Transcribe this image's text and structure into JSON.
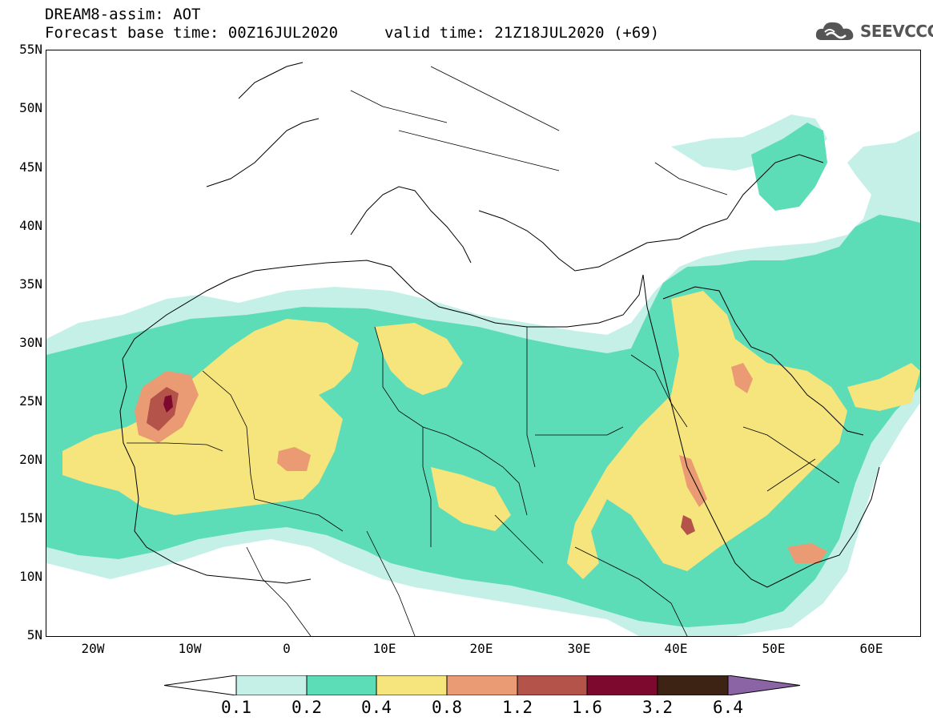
{
  "title": {
    "line1": "DREAM8-assim: AOT",
    "line2": "Forecast base time: 00Z16JUL2020",
    "line3": "valid time: 21Z18JUL2020 (+69)"
  },
  "logo": {
    "text": "SEEVCCC",
    "icon": "cloud-icon"
  },
  "axes": {
    "lat_labels": [
      "55N",
      "50N",
      "45N",
      "40N",
      "35N",
      "30N",
      "25N",
      "20N",
      "15N",
      "10N",
      "5N"
    ],
    "lon_labels": [
      "20W",
      "10W",
      "0",
      "10E",
      "20E",
      "30E",
      "40E",
      "50E",
      "60E"
    ]
  },
  "colorbar": {
    "labels": [
      "0.1",
      "0.2",
      "0.4",
      "0.8",
      "1.2",
      "1.6",
      "3.2",
      "6.4"
    ],
    "colors": [
      "#ffffff",
      "#c4f0e8",
      "#5ddcb8",
      "#f6e57c",
      "#ea9b73",
      "#b4534a",
      "#7d0a2e",
      "#3d2314",
      "#8b64a6"
    ]
  }
}
